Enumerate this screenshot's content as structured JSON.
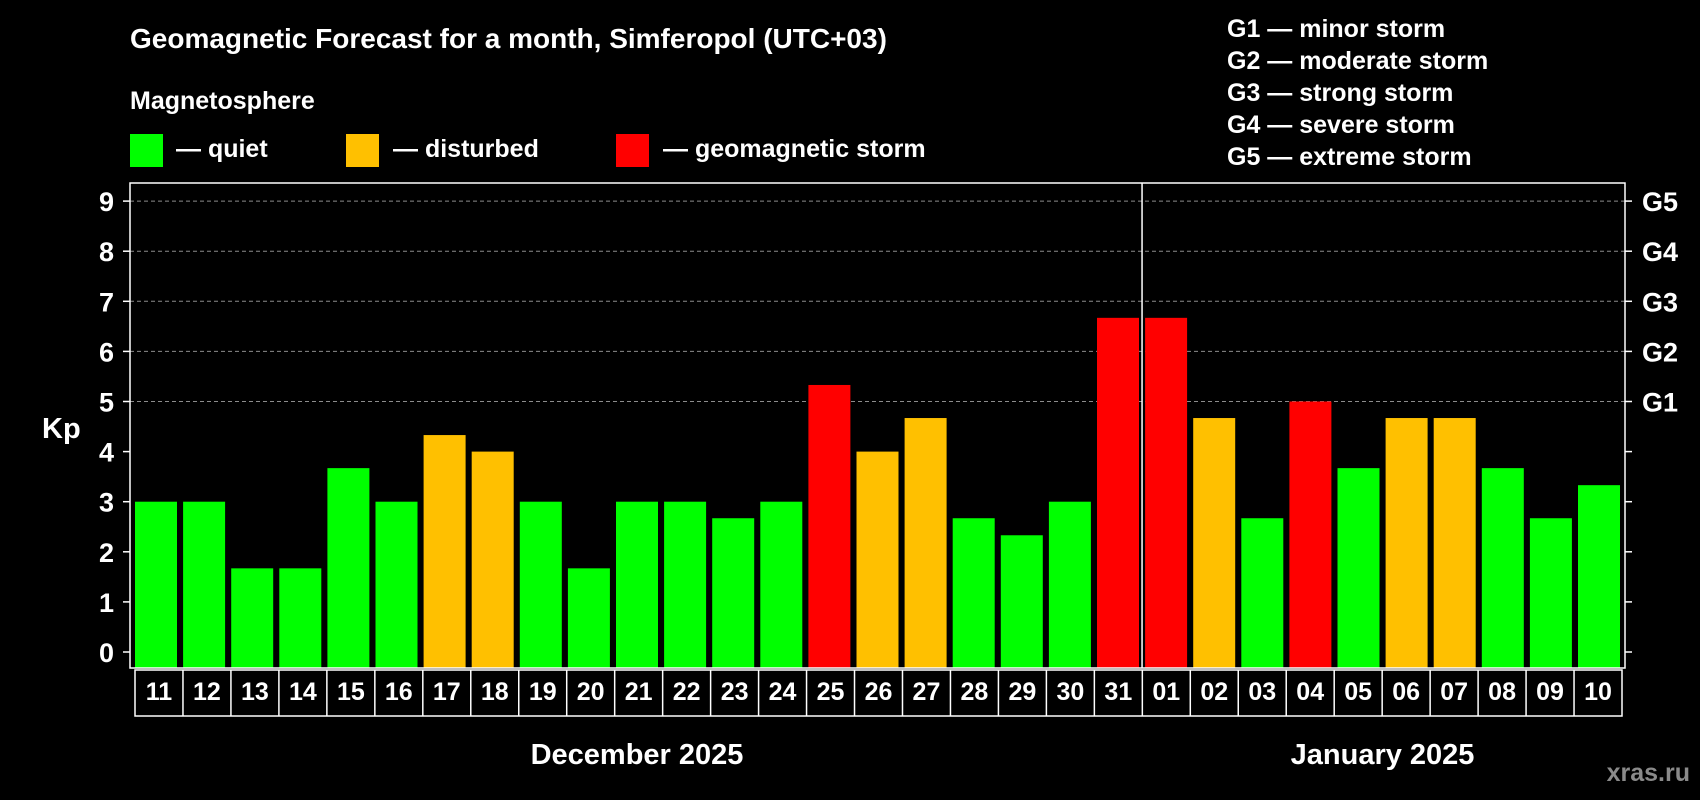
{
  "chart_data": {
    "type": "bar",
    "title": "Geomagnetic Forecast for a month, Simferopol (UTC+03)",
    "legend_title": "Magnetosphere",
    "legend": [
      {
        "label": "— quiet",
        "color": "#00ff00"
      },
      {
        "label": "— disturbed",
        "color": "#ffc000"
      },
      {
        "label": "— geomagnetic storm",
        "color": "#ff0000"
      }
    ],
    "storm_scale": [
      "G1 — minor storm",
      "G2 — moderate storm",
      "G3 — strong storm",
      "G4 — severe storm",
      "G5 — extreme storm"
    ],
    "ylabel": "Kp",
    "ylim": [
      0,
      9
    ],
    "yticks": [
      "0",
      "1",
      "2",
      "3",
      "4",
      "5",
      "6",
      "7",
      "8",
      "9"
    ],
    "right_ticks": [
      {
        "value": 5,
        "label": "G1"
      },
      {
        "value": 6,
        "label": "G2"
      },
      {
        "value": 7,
        "label": "G3"
      },
      {
        "value": 8,
        "label": "G4"
      },
      {
        "value": 9,
        "label": "G5"
      }
    ],
    "grid": "dashed at 5, 6, 7, 8, 9",
    "categories": [
      "11",
      "12",
      "13",
      "14",
      "15",
      "16",
      "17",
      "18",
      "19",
      "20",
      "21",
      "22",
      "23",
      "24",
      "25",
      "26",
      "27",
      "28",
      "29",
      "30",
      "31",
      "01",
      "02",
      "03",
      "04",
      "05",
      "06",
      "07",
      "08",
      "09",
      "10"
    ],
    "values": [
      3,
      3,
      1.67,
      1.67,
      3.67,
      3,
      4.33,
      4,
      3,
      1.67,
      3,
      3,
      2.67,
      3,
      5.33,
      4,
      4.67,
      2.67,
      2.33,
      3,
      6.67,
      6.67,
      4.67,
      2.67,
      5,
      3.67,
      4.67,
      4.67,
      3.67,
      2.67,
      3.33
    ],
    "status": [
      "quiet",
      "quiet",
      "quiet",
      "quiet",
      "quiet",
      "quiet",
      "disturbed",
      "disturbed",
      "quiet",
      "quiet",
      "quiet",
      "quiet",
      "quiet",
      "quiet",
      "storm",
      "disturbed",
      "disturbed",
      "quiet",
      "quiet",
      "quiet",
      "storm",
      "storm",
      "disturbed",
      "quiet",
      "storm",
      "quiet",
      "disturbed",
      "disturbed",
      "quiet",
      "quiet",
      "quiet"
    ],
    "status_colors": {
      "quiet": "#00ff00",
      "disturbed": "#ffc000",
      "storm": "#ff0000"
    },
    "months": [
      {
        "label": "December 2025",
        "first_index": 0,
        "last_index": 20
      },
      {
        "label": "January 2025",
        "first_index": 21,
        "last_index": 30
      }
    ],
    "watermark": "xras.ru"
  }
}
